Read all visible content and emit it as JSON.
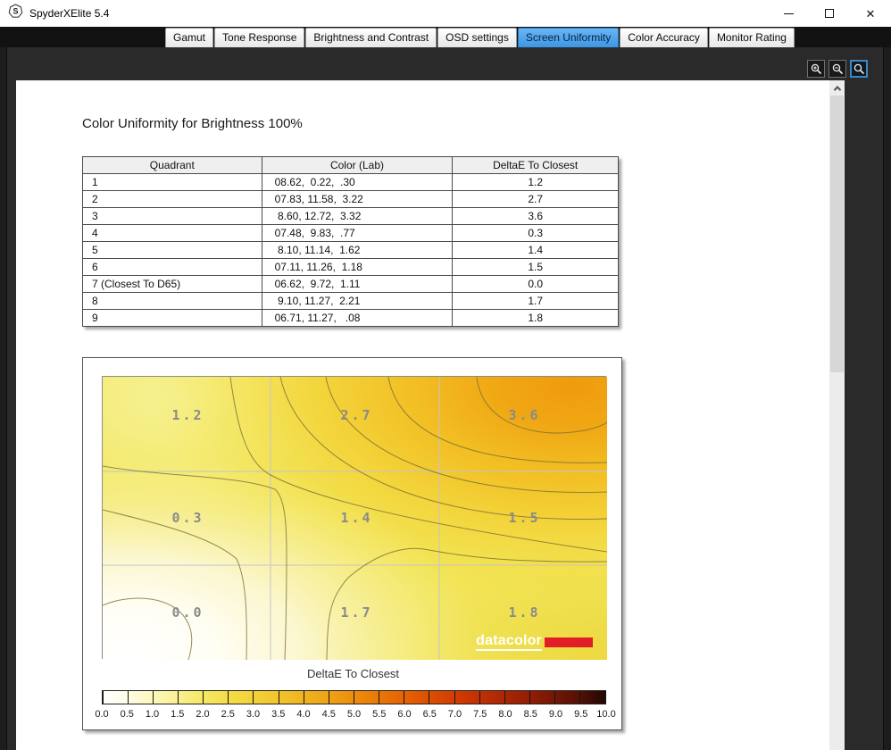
{
  "window": {
    "title": "SpyderXElite 5.4",
    "icon": "spyder-s-logo",
    "controls": [
      "minimize",
      "maximize",
      "close"
    ]
  },
  "tabs": {
    "items": [
      "Gamut",
      "Tone Response",
      "Brightness and Contrast",
      "OSD settings",
      "Screen Uniformity",
      "Color Accuracy",
      "Monitor Rating"
    ],
    "active": "Screen Uniformity"
  },
  "toolbar": {
    "buttons": [
      "zoom-in",
      "zoom-out",
      "zoom-select"
    ],
    "active": "zoom-select"
  },
  "heading": "Color Uniformity for Brightness 100%",
  "table": {
    "columns": [
      "Quadrant",
      "Color (Lab)",
      "DeltaE To Closest"
    ],
    "rows": [
      {
        "quadrant": "1",
        "lab": "08.62,  0.22,  .30",
        "delta": "1.2"
      },
      {
        "quadrant": "2",
        "lab": "07.83, 11.58,  3.22",
        "delta": "2.7"
      },
      {
        "quadrant": "3",
        "lab": " 8.60, 12.72,  3.32",
        "delta": "3.6"
      },
      {
        "quadrant": "4",
        "lab": "07.48,  9.83,  .77",
        "delta": "0.3"
      },
      {
        "quadrant": "5",
        "lab": " 8.10, 11.14,  1.62",
        "delta": "1.4"
      },
      {
        "quadrant": "6",
        "lab": "07.11, 11.26,  1.18",
        "delta": "1.5"
      },
      {
        "quadrant": "7 (Closest To D65)",
        "lab": "06.62,  9.72,  1.11",
        "delta": "0.0"
      },
      {
        "quadrant": "8",
        "lab": " 9.10, 11.27,  2.21",
        "delta": "1.7"
      },
      {
        "quadrant": "9",
        "lab": "06.71, 11.27,   .08",
        "delta": "1.8"
      }
    ]
  },
  "chart_data": {
    "type": "heatmap",
    "rows": 3,
    "cols": 3,
    "values": [
      [
        1.2,
        2.7,
        3.6
      ],
      [
        0.3,
        1.4,
        1.5
      ],
      [
        0.0,
        1.7,
        1.8
      ]
    ],
    "labels": [
      [
        "1.2",
        "2.7",
        "3.6"
      ],
      [
        "0.3",
        "1.4",
        "1.5"
      ],
      [
        "0.0",
        "1.7",
        "1.8"
      ]
    ],
    "grid": true,
    "colorbar": {
      "label": "DeltaE To Closest",
      "min": 0.0,
      "max": 10.0,
      "step": 0.5,
      "ticks": [
        "0.0",
        "0.5",
        "1.0",
        "1.5",
        "2.0",
        "2.5",
        "3.0",
        "3.5",
        "4.0",
        "4.5",
        "5.0",
        "5.5",
        "6.0",
        "6.5",
        "7.0",
        "7.5",
        "8.0",
        "8.5",
        "9.0",
        "9.5",
        "10.0"
      ],
      "gradient": [
        "#ffffff",
        "#fffce4",
        "#fdf7bc",
        "#f9f092",
        "#f6e765",
        "#f4dd48",
        "#f3d139",
        "#f2c42c",
        "#f0b321",
        "#eea117",
        "#ec8d0e",
        "#e97807",
        "#e56202",
        "#dd4e01",
        "#d13d02",
        "#c13003",
        "#ab2604",
        "#911e05",
        "#731705",
        "#531005",
        "#240602"
      ]
    },
    "logo": {
      "text": "datacolor",
      "accent_color": "#e11d26"
    }
  },
  "colors": {
    "active_tab": "#3c96e6",
    "frame": "#2a2a2a",
    "heatmap_low": "#ffffff",
    "heatmap_high": "#ef9b0e"
  }
}
